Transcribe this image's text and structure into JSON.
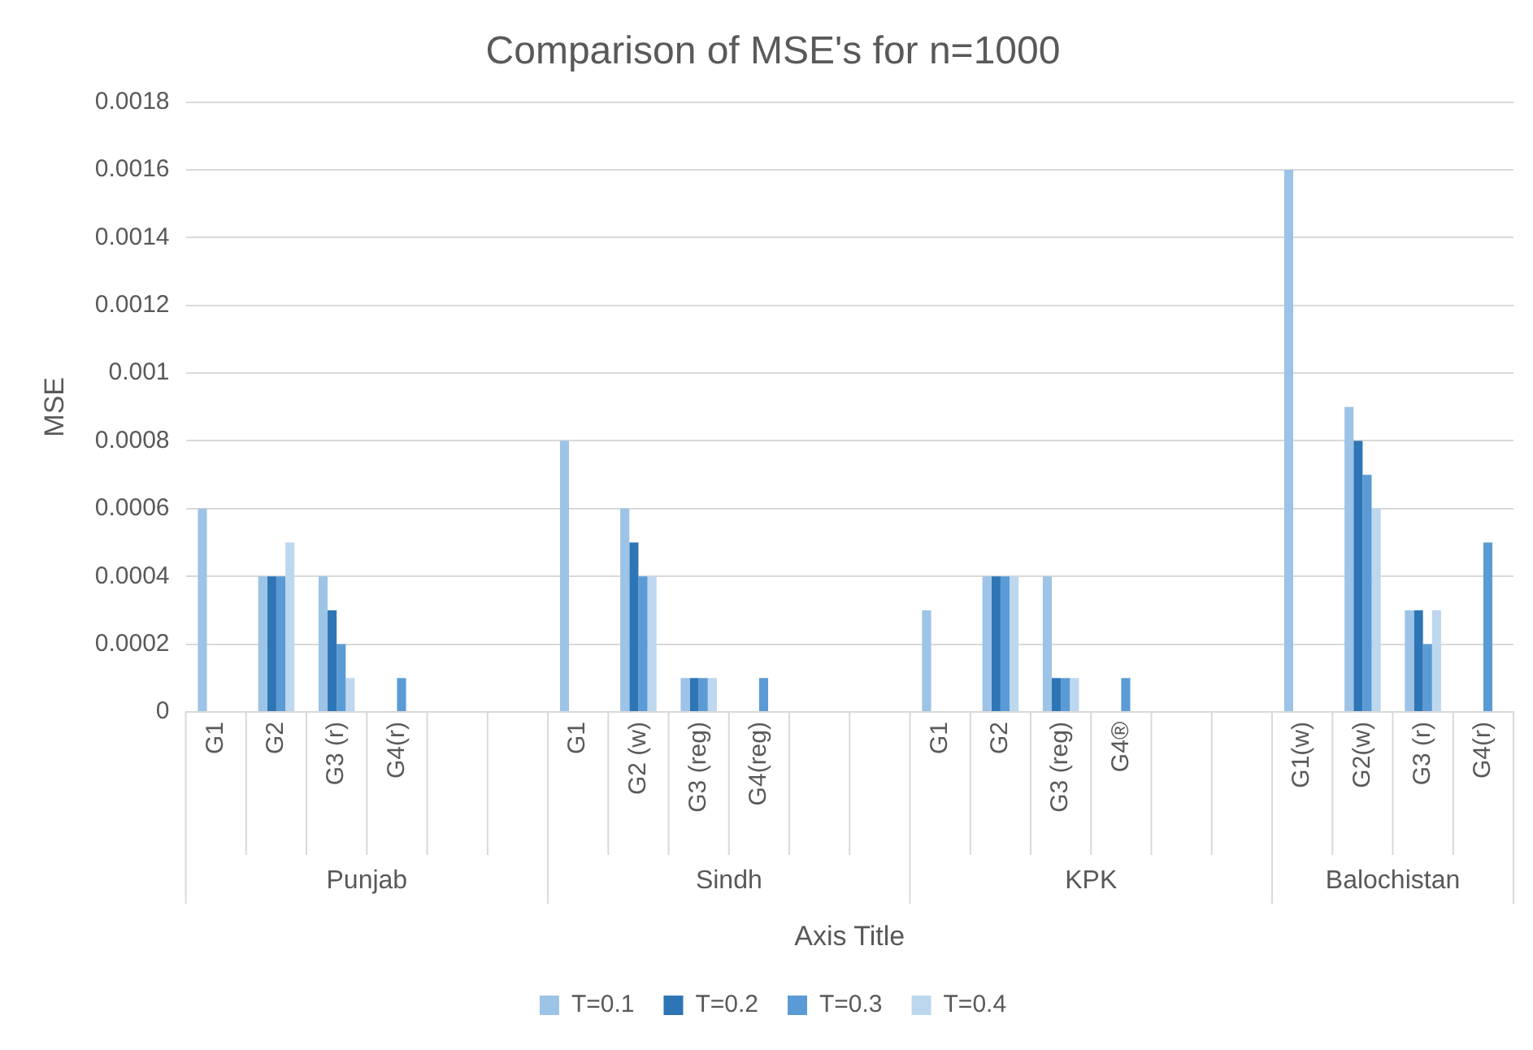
{
  "chart_data": {
    "type": "bar",
    "title": "Comparison of MSE's for n=1000",
    "xlabel": "Axis Title",
    "ylabel": "MSE",
    "categories": [
      "G1",
      "G2",
      "G3 (r)",
      "G4(r)",
      null,
      null,
      "G1",
      "G2 (w)",
      "G3 (reg)",
      "G4(reg)",
      null,
      null,
      "G1",
      "G2",
      "G3 (reg)",
      "G4®",
      null,
      null,
      "G1(w)",
      "G2(w)",
      "G3 (r)",
      "G4(r)"
    ],
    "series": [
      {
        "name": "T=0.1",
        "color": "#9dc3e6",
        "values": [
          0.0006,
          0.0004,
          0.0004,
          null,
          null,
          null,
          0.0008,
          0.0006,
          0.0001,
          null,
          null,
          null,
          0.0003,
          0.0004,
          0.0004,
          null,
          null,
          null,
          0.0016,
          0.0009,
          0.0003,
          null
        ]
      },
      {
        "name": "T=0.2",
        "color": "#2e75b6",
        "values": [
          null,
          0.0004,
          0.0003,
          null,
          null,
          null,
          null,
          0.0005,
          0.0001,
          null,
          null,
          null,
          null,
          0.0004,
          0.0001,
          null,
          null,
          null,
          null,
          0.0008,
          0.0003,
          null
        ]
      },
      {
        "name": "T=0.3",
        "color": "#5b9bd5",
        "values": [
          null,
          0.0004,
          0.0002,
          0.0001,
          null,
          null,
          null,
          0.0004,
          0.0001,
          0.0001,
          null,
          null,
          null,
          0.0004,
          0.0001,
          0.0001,
          null,
          null,
          null,
          0.0007,
          0.0002,
          0.0005
        ]
      },
      {
        "name": "T=0.4",
        "color": "#bdd7ee",
        "values": [
          null,
          0.0005,
          0.0001,
          null,
          null,
          null,
          null,
          0.0004,
          0.0001,
          null,
          null,
          null,
          null,
          0.0004,
          0.0001,
          null,
          null,
          null,
          null,
          0.0006,
          0.0003,
          null
        ]
      }
    ],
    "annotations": [
      "Punjab",
      "Sindh",
      "KPK",
      "Balochistan"
    ],
    "ylim": [
      0,
      0.0018
    ],
    "yticks": [
      0,
      0.0002,
      0.0004,
      0.0006,
      0.0008,
      0.001,
      0.0012,
      0.0014,
      0.0016,
      0.0018
    ],
    "grid": "y",
    "legend": "bottom"
  }
}
